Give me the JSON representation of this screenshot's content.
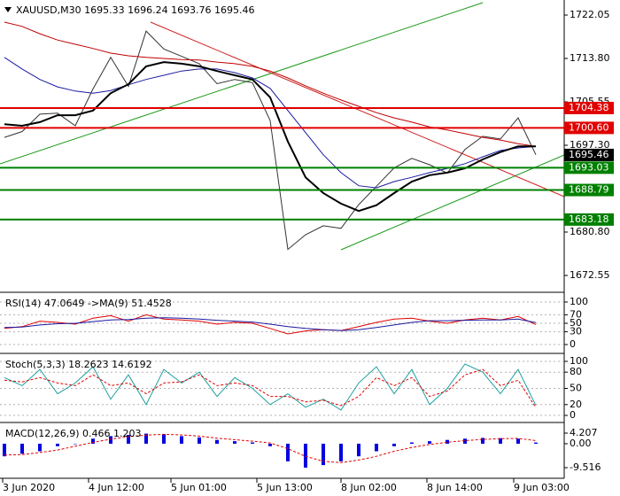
{
  "chart_data": [
    {
      "type": "line",
      "title": "XAUUSD,M30  1695.33 1696.24 1693.76 1695.46",
      "xlim": [
        -0.25,
        31.6
      ],
      "xticks": [
        {
          "value": -0.1,
          "label": "3 Jun 2020"
        },
        {
          "value": 4.75,
          "label": "4 Jun 12:00"
        },
        {
          "value": 9.4,
          "label": "5 Jun 01:00"
        },
        {
          "value": 14.25,
          "label": "5 Jun 13:00"
        },
        {
          "value": 19,
          "label": "8 Jun 02:00"
        },
        {
          "value": 23.85,
          "label": "8 Jun 14:00"
        },
        {
          "value": 28.75,
          "label": "9 Jun 03:00"
        }
      ],
      "ylim": [
        1669.35,
        1724.91
      ],
      "yticks": [
        1722.05,
        {
          "value": 1713.8,
          "label": "1713.80"
        },
        1705.55,
        {
          "value": 1697.3,
          "label": "1697.30"
        },
        {
          "value": 1680.8,
          "label": "1680.80"
        },
        1672.55
      ],
      "grid": false,
      "series": [
        {
          "color": "#333333",
          "width": 1,
          "values": [
            1698.8,
            1699.9,
            1703.2,
            1703.4,
            1701.0,
            1708.0,
            1714.0,
            1708.5,
            1719.0,
            1715.6,
            1714.2,
            1712.8,
            1709.0,
            1709.8,
            1709.2,
            1702.0,
            1677.5,
            1680.3,
            1682.0,
            1681.5,
            1686.0,
            1689.5,
            1693.0,
            1694.8,
            1693.6,
            1692.0,
            1696.5,
            1699.0,
            1698.5,
            1702.5,
            1695.5
          ]
        },
        {
          "color": "#c00000",
          "width": 1,
          "values": [
            1720.7,
            1719.9,
            1718.5,
            1717.3,
            1716.5,
            1715.7,
            1714.8,
            1714.3,
            1714.0,
            1713.8,
            1713.6,
            1713.5,
            1713.1,
            1712.8,
            1712.3,
            1711.4,
            1710.1,
            1708.6,
            1707.2,
            1705.9,
            1704.7,
            1703.5,
            1702.5,
            1701.7,
            1700.8,
            1700.2,
            1699.5,
            1698.8,
            1698.3,
            1697.6,
            1697.1
          ]
        },
        {
          "color": "#1a1aa0",
          "width": 1,
          "values": [
            1714.0,
            1711.8,
            1709.8,
            1708.4,
            1707.6,
            1707.2,
            1707.7,
            1708.8,
            1709.8,
            1710.6,
            1711.4,
            1711.8,
            1711.8,
            1711.1,
            1710.1,
            1708.1,
            1703.9,
            1699.7,
            1695.5,
            1692.1,
            1689.6,
            1689.2,
            1690.4,
            1691.2,
            1692.1,
            1692.9,
            1693.8,
            1695.1,
            1696.3,
            1696.8,
            1697.1
          ]
        },
        {
          "color": "#000000",
          "width": 2,
          "values": [
            1701.3,
            1701.0,
            1701.7,
            1703.0,
            1703.0,
            1703.9,
            1707.2,
            1708.9,
            1712.3,
            1713.1,
            1712.8,
            1712.3,
            1711.4,
            1710.6,
            1709.8,
            1706.4,
            1698.0,
            1691.2,
            1688.2,
            1686.2,
            1684.8,
            1685.9,
            1688.2,
            1690.4,
            1691.6,
            1692.1,
            1692.9,
            1694.6,
            1696.0,
            1697.1,
            1697.1
          ]
        }
      ],
      "levels": [
        {
          "value": 1704.38,
          "color": "#e00000"
        },
        {
          "value": 1700.6,
          "label": "1700.60",
          "color": "#e00000"
        },
        {
          "value": 1693.03,
          "color": "#008000"
        },
        {
          "value": 1688.79,
          "color": "#008000"
        },
        {
          "value": 1683.18,
          "color": "#008000"
        }
      ],
      "last_price": 1695.46
    },
    {
      "type": "line",
      "title": "RSI(14) 47.0649  ->MA(9) 51.4528",
      "ylim": [
        -18.75,
        120.8
      ],
      "yticks": [
        0,
        30,
        50,
        70,
        100
      ],
      "grid": true,
      "series": [
        {
          "color": "#e00000",
          "width": 1,
          "values": [
            38,
            42,
            55,
            52,
            48,
            62,
            68,
            55,
            70,
            60,
            58,
            55,
            48,
            52,
            50,
            38,
            25,
            32,
            35,
            33,
            42,
            52,
            60,
            62,
            55,
            50,
            58,
            62,
            58,
            66,
            47
          ]
        },
        {
          "color": "#1a1aa0",
          "width": 1,
          "values": [
            40,
            41,
            46,
            49,
            50,
            54,
            58,
            59,
            62,
            63,
            62,
            60,
            57,
            55,
            53,
            48,
            42,
            38,
            35,
            33,
            35,
            40,
            46,
            52,
            56,
            56,
            57,
            58,
            58,
            60,
            51.5
          ]
        }
      ]
    },
    {
      "type": "line",
      "title": "Stoch(5,3,3) 18.2623 14.6192",
      "ylim": [
        -11.5,
        113.1
      ],
      "yticks": [
        0,
        20,
        50,
        80,
        100
      ],
      "grid": true,
      "series": [
        {
          "color": "#20a0a0",
          "width": 1,
          "values": [
            70,
            55,
            85,
            40,
            60,
            90,
            30,
            75,
            20,
            85,
            60,
            80,
            35,
            70,
            50,
            20,
            40,
            15,
            30,
            10,
            60,
            90,
            40,
            85,
            20,
            50,
            95,
            80,
            40,
            85,
            18.3
          ]
        },
        {
          "color": "#e00000",
          "width": 1,
          "dash": true,
          "values": [
            65,
            62,
            70,
            60,
            55,
            75,
            55,
            60,
            40,
            60,
            62,
            75,
            55,
            60,
            55,
            35,
            35,
            25,
            28,
            18,
            35,
            70,
            55,
            70,
            35,
            45,
            75,
            85,
            55,
            65,
            14.6
          ]
        }
      ]
    },
    {
      "type": "bar",
      "title": "MACD(12,26,9) 0.466 1.203",
      "ylim": [
        -13.74,
        8.08
      ],
      "yticks": [
        4.207,
        {
          "value": 0,
          "label": "0.00"
        },
        -9.516
      ],
      "grid": false,
      "series": [
        {
          "color": "#0000e0",
          "type": "bar",
          "values": [
            -5,
            -4,
            -3,
            -1,
            0,
            2,
            3,
            3.5,
            4,
            3.8,
            3,
            2.5,
            1.5,
            1,
            0.5,
            -1,
            -7,
            -9.5,
            -8.5,
            -7,
            -5,
            -3,
            -1,
            0.5,
            1,
            1.5,
            2,
            2.3,
            2.2,
            2,
            0.47
          ]
        },
        {
          "color": "#e00000",
          "width": 1,
          "dash": true,
          "values": [
            -4.5,
            -4.3,
            -3.5,
            -2.5,
            -1,
            0.5,
            1.8,
            2.8,
            3.4,
            3.7,
            3.5,
            3,
            2.2,
            1.6,
            1,
            0.3,
            -2,
            -5,
            -7,
            -7.5,
            -6.5,
            -5,
            -3,
            -1.5,
            -0.3,
            0.6,
            1.2,
            1.7,
            2,
            2.1,
            1.2
          ]
        }
      ]
    }
  ]
}
